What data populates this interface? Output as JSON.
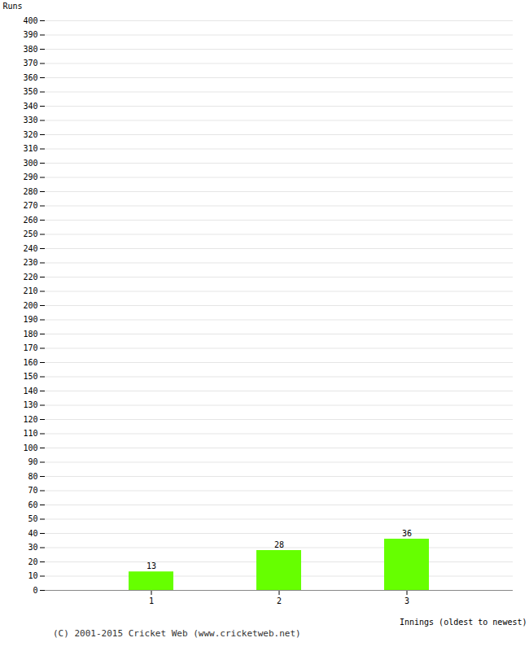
{
  "chart_data": {
    "type": "bar",
    "categories": [
      "1",
      "2",
      "3"
    ],
    "values": [
      13,
      28,
      36
    ],
    "color": "#66ff00",
    "xlabel": "Innings (oldest to newest)",
    "ylabel": "Runs",
    "ylim": [
      0,
      400
    ],
    "yticks": [
      0,
      10,
      20,
      30,
      40,
      50,
      60,
      70,
      80,
      90,
      100,
      110,
      120,
      130,
      140,
      150,
      160,
      170,
      180,
      190,
      200,
      210,
      220,
      230,
      240,
      250,
      260,
      270,
      280,
      290,
      300,
      310,
      320,
      330,
      340,
      350,
      360,
      370,
      380,
      390,
      400
    ],
    "grid": true,
    "data_labels": true,
    "caption": "(C) 2001-2015 Cricket Web (www.cricketweb.net)"
  }
}
